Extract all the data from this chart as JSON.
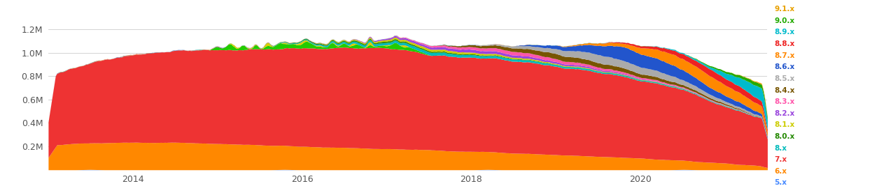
{
  "background_color": "#ffffff",
  "legend_labels": [
    "9.1.x",
    "9.0.x",
    "8.9.x",
    "8.8.x",
    "8.7.x",
    "8.6.x",
    "8.5.x",
    "8.4.x",
    "8.3.x",
    "8.2.x",
    "8.1.x",
    "8.0.x",
    "8.x",
    "7.x",
    "6.x",
    "5.x"
  ],
  "legend_colors": [
    "#e8a000",
    "#22aa00",
    "#00bbcc",
    "#ee2222",
    "#ff8800",
    "#2255cc",
    "#aaaaaa",
    "#775500",
    "#ff55aa",
    "#9944dd",
    "#cccc00",
    "#228800",
    "#00bbbb",
    "#ee3333",
    "#ff8800",
    "#4488ff"
  ],
  "ylim": [
    0,
    1350000
  ],
  "xlim_start": 2013.0,
  "xlim_end": 2021.5
}
